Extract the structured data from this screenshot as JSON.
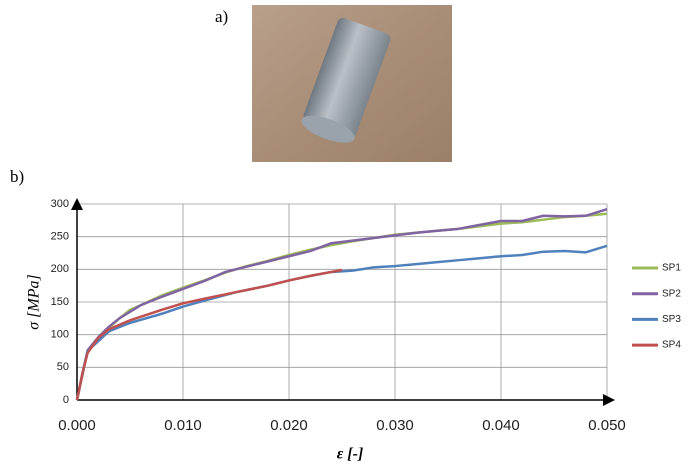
{
  "panel_a_label": "a)",
  "panel_b_label": "b)",
  "chart_data": {
    "type": "line",
    "ylabel": "σ [MPa]",
    "xlabel": "ε [-]",
    "xlim": [
      0,
      0.05
    ],
    "ylim": [
      0,
      300
    ],
    "xticks": [
      {
        "value": 0,
        "label": "0.000"
      },
      {
        "value": 0.01,
        "label": "0.010"
      },
      {
        "value": 0.02,
        "label": "0.020"
      },
      {
        "value": 0.03,
        "label": "0.030"
      },
      {
        "value": 0.04,
        "label": "0.040"
      },
      {
        "value": 0.05,
        "label": "0.050"
      }
    ],
    "yticks": [
      0,
      50,
      100,
      150,
      200,
      250,
      300
    ],
    "grid": true,
    "legend": "right",
    "series": [
      {
        "name": "SP1",
        "color": "#9bbb59",
        "x": [
          0,
          0.001,
          0.002,
          0.003,
          0.004,
          0.005,
          0.006,
          0.008,
          0.01,
          0.012,
          0.014,
          0.016,
          0.018,
          0.02,
          0.022,
          0.024,
          0.026,
          0.028,
          0.03,
          0.032,
          0.034,
          0.036,
          0.038,
          0.04,
          0.042,
          0.044,
          0.046,
          0.048,
          0.05
        ],
        "values": [
          0,
          75,
          95,
          110,
          125,
          138,
          145,
          160,
          172,
          183,
          195,
          205,
          213,
          222,
          230,
          237,
          243,
          248,
          253,
          256,
          259,
          262,
          266,
          270,
          272,
          276,
          280,
          282,
          285
        ]
      },
      {
        "name": "SP2",
        "color": "#8064a2",
        "x": [
          0,
          0.001,
          0.002,
          0.003,
          0.004,
          0.005,
          0.006,
          0.008,
          0.01,
          0.012,
          0.014,
          0.016,
          0.018,
          0.02,
          0.022,
          0.024,
          0.026,
          0.028,
          0.03,
          0.032,
          0.034,
          0.036,
          0.038,
          0.04,
          0.042,
          0.044,
          0.046,
          0.048,
          0.05
        ],
        "values": [
          0,
          76,
          96,
          112,
          125,
          135,
          145,
          158,
          170,
          182,
          196,
          204,
          212,
          220,
          228,
          240,
          244,
          248,
          252,
          256,
          259,
          262,
          268,
          274,
          274,
          282,
          281,
          282,
          292
        ]
      },
      {
        "name": "SP3",
        "color": "#4f81bd",
        "x": [
          0,
          0.0005,
          0.001,
          0.002,
          0.003,
          0.005,
          0.008,
          0.01,
          0.012,
          0.015,
          0.018,
          0.02,
          0.022,
          0.024,
          0.026,
          0.028,
          0.03,
          0.032,
          0.034,
          0.036,
          0.038,
          0.04,
          0.042,
          0.044,
          0.046,
          0.048,
          0.05
        ],
        "values": [
          0,
          40,
          75,
          90,
          105,
          118,
          132,
          143,
          152,
          165,
          175,
          183,
          190,
          196,
          198,
          203,
          205,
          208,
          211,
          214,
          217,
          220,
          222,
          227,
          228,
          226,
          236
        ]
      },
      {
        "name": "SP4",
        "color": "#c0504d",
        "x": [
          0,
          0.0005,
          0.001,
          0.002,
          0.003,
          0.005,
          0.008,
          0.01,
          0.012,
          0.015,
          0.018,
          0.02,
          0.022,
          0.024,
          0.025
        ],
        "values": [
          0,
          40,
          72,
          95,
          108,
          122,
          138,
          148,
          155,
          165,
          175,
          183,
          190,
          196,
          199
        ]
      }
    ]
  }
}
